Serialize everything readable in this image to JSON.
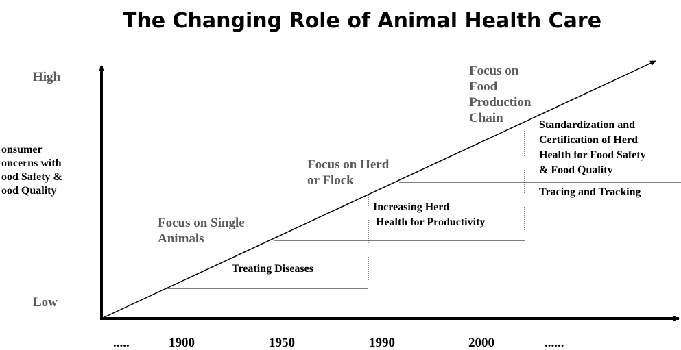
{
  "title": "The Changing Role of Animal Health Care",
  "y_axis": {
    "high": "High",
    "low": "Low",
    "label": [
      "onsumer",
      "oncerns with",
      "ood Safety &",
      "ood Quality"
    ]
  },
  "stages": [
    {
      "label": [
        "Focus on Single",
        "Animals"
      ]
    },
    {
      "label": [
        "Focus  on Herd",
        "or Flock"
      ]
    },
    {
      "label": [
        "Focus on",
        "Food",
        "Production",
        "Chain"
      ]
    }
  ],
  "steps": [
    {
      "label": [
        "Treating Diseases"
      ]
    },
    {
      "label": [
        "Increasing Herd",
        "Health for Productivity"
      ]
    },
    {
      "label": [
        "Standardization and",
        "Certification of Herd",
        "Health for Food Safety",
        "& Food Quality"
      ]
    },
    {
      "label": [
        "Tracing and Tracking"
      ]
    }
  ],
  "x_axis": [
    ".....",
    "1900",
    "1950",
    "1990",
    "2000",
    "......"
  ]
}
